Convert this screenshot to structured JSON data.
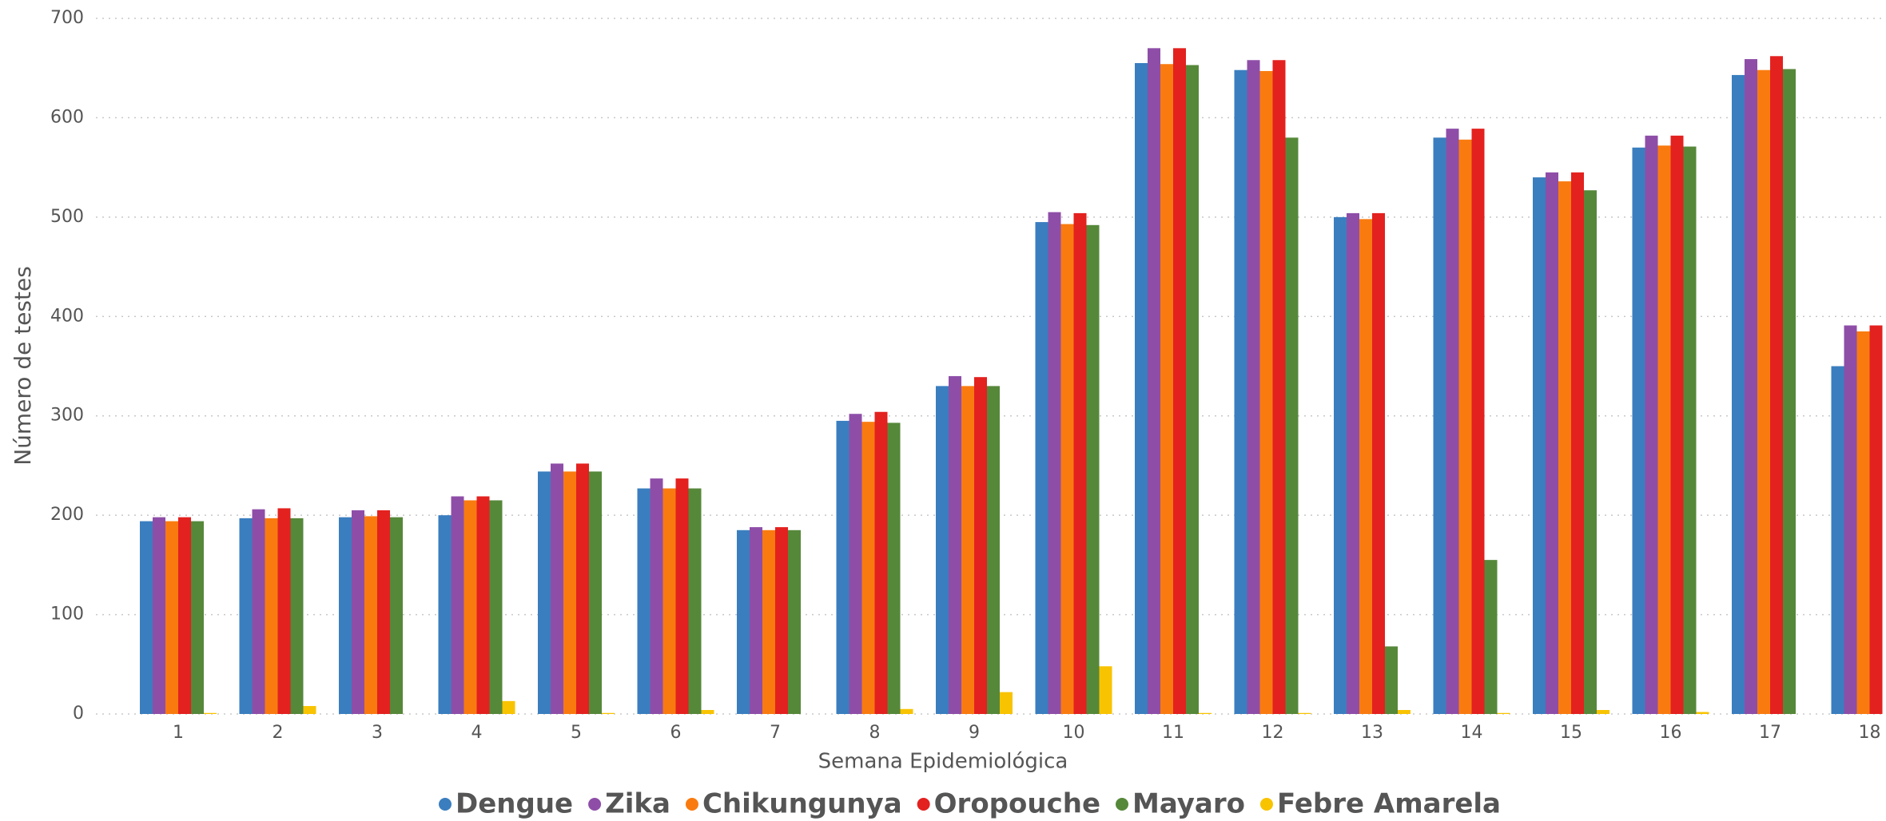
{
  "chart_data": {
    "type": "bar",
    "x_label": "Semana Epidemiológica",
    "y_label": "Número de testes",
    "categories": [
      "1",
      "2",
      "3",
      "4",
      "5",
      "6",
      "7",
      "8",
      "9",
      "10",
      "11",
      "12",
      "13",
      "14",
      "15",
      "16",
      "17",
      "18"
    ],
    "series": [
      {
        "name": "Dengue",
        "color": "#3a7ebf",
        "values": [
          194,
          197,
          198,
          200,
          244,
          227,
          185,
          295,
          330,
          495,
          655,
          648,
          500,
          580,
          540,
          570,
          643,
          350
        ]
      },
      {
        "name": "Zika",
        "color": "#8e4ea8",
        "values": [
          198,
          206,
          205,
          219,
          252,
          237,
          188,
          302,
          340,
          505,
          670,
          658,
          504,
          589,
          545,
          582,
          659,
          391
        ]
      },
      {
        "name": "Chikungunya",
        "color": "#f97b0f",
        "values": [
          194,
          197,
          199,
          215,
          244,
          227,
          185,
          294,
          330,
          493,
          654,
          647,
          498,
          578,
          536,
          572,
          648,
          385
        ]
      },
      {
        "name": "Oropouche",
        "color": "#e3211f",
        "values": [
          198,
          207,
          205,
          219,
          252,
          237,
          188,
          304,
          339,
          504,
          670,
          658,
          504,
          589,
          545,
          582,
          662,
          391
        ]
      },
      {
        "name": "Mayaro",
        "color": "#56883a",
        "values": [
          194,
          197,
          198,
          215,
          244,
          227,
          185,
          293,
          330,
          492,
          653,
          580,
          68,
          155,
          527,
          571,
          649,
          null
        ]
      },
      {
        "name": "Febre Amarela",
        "color": "#f8c300",
        "values": [
          1,
          8,
          0,
          13,
          1,
          4,
          0,
          5,
          22,
          48,
          1,
          1,
          4,
          1,
          4,
          2,
          0,
          null
        ]
      }
    ],
    "ylim": [
      0,
      700
    ],
    "yticks": [
      0,
      100,
      200,
      300,
      400,
      500,
      600,
      700
    ],
    "grid": true,
    "legend": "bottom"
  }
}
